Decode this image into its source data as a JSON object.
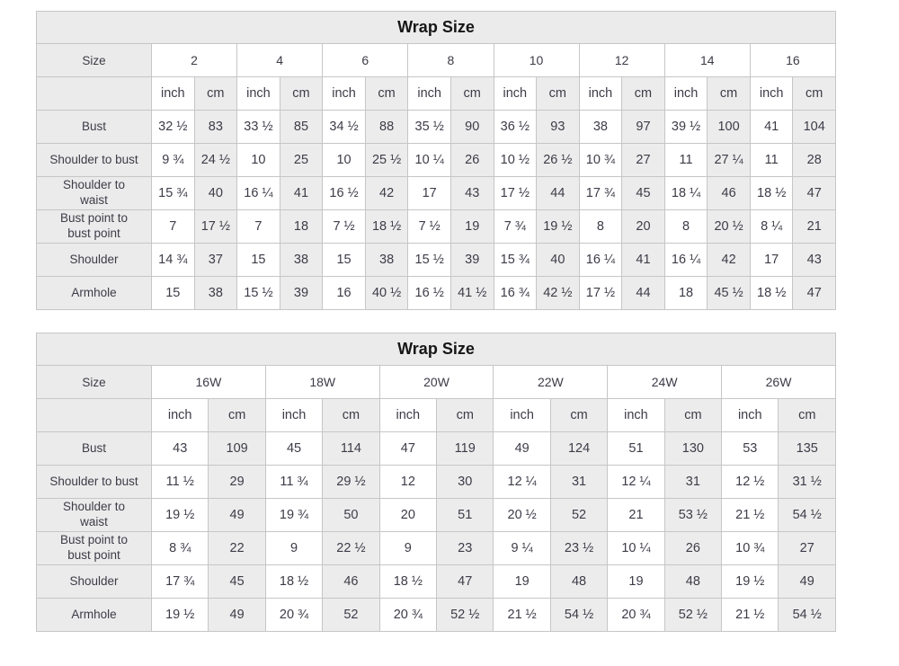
{
  "page": {
    "background": "#ffffff"
  },
  "style": {
    "border_color": "#c6c6c6",
    "band_bg": "#ebebeb",
    "alt_cell_bg": "#ececec",
    "cell_bg": "#ffffff",
    "text_color": "#3e3b47",
    "title_color": "#161616"
  },
  "chart_data": [
    {
      "type": "table",
      "title": "Wrap Size",
      "size_label": "Size",
      "unit_labels": [
        "inch",
        "cm"
      ],
      "sizes": [
        "2",
        "4",
        "6",
        "8",
        "10",
        "12",
        "14",
        "16"
      ],
      "rows": [
        {
          "label": "Bust",
          "cells": [
            "32 ½",
            "83",
            "33 ½",
            "85",
            "34 ½",
            "88",
            "35 ½",
            "90",
            "36 ½",
            "93",
            "38",
            "97",
            "39 ½",
            "100",
            "41",
            "104"
          ]
        },
        {
          "label": "Shoulder to bust",
          "cells": [
            "9 ¾",
            "24 ½",
            "10",
            "25",
            "10",
            "25 ½",
            "10 ¼",
            "26",
            "10 ½",
            "26 ½",
            "10 ¾",
            "27",
            "11",
            "27 ¼",
            "11",
            "28"
          ]
        },
        {
          "label": "Shoulder to\nwaist",
          "cells": [
            "15 ¾",
            "40",
            "16 ¼",
            "41",
            "16 ½",
            "42",
            "17",
            "43",
            "17 ½",
            "44",
            "17 ¾",
            "45",
            "18 ¼",
            "46",
            "18 ½",
            "47"
          ]
        },
        {
          "label": "Bust point to\nbust point",
          "cells": [
            "7",
            "17 ½",
            "7",
            "18",
            "7 ½",
            "18 ½",
            "7 ½",
            "19",
            "7 ¾",
            "19 ½",
            "8",
            "20",
            "8",
            "20 ½",
            "8 ¼",
            "21"
          ]
        },
        {
          "label": "Shoulder",
          "cells": [
            "14 ¾",
            "37",
            "15",
            "38",
            "15",
            "38",
            "15 ½",
            "39",
            "15 ¾",
            "40",
            "16 ¼",
            "41",
            "16 ¼",
            "42",
            "17",
            "43"
          ]
        },
        {
          "label": "Armhole",
          "cells": [
            "15",
            "38",
            "15 ½",
            "39",
            "16",
            "40 ½",
            "16 ½",
            "41 ½",
            "16 ¾",
            "42 ½",
            "17 ½",
            "44",
            "18",
            "45 ½",
            "18 ½",
            "47"
          ]
        }
      ]
    },
    {
      "type": "table",
      "title": "Wrap Size",
      "size_label": "Size",
      "unit_labels": [
        "inch",
        "cm"
      ],
      "sizes": [
        "16W",
        "18W",
        "20W",
        "22W",
        "24W",
        "26W"
      ],
      "rows": [
        {
          "label": "Bust",
          "cells": [
            "43",
            "109",
            "45",
            "114",
            "47",
            "119",
            "49",
            "124",
            "51",
            "130",
            "53",
            "135"
          ]
        },
        {
          "label": "Shoulder to bust",
          "cells": [
            "11 ½",
            "29",
            "11 ¾",
            "29 ½",
            "12",
            "30",
            "12 ¼",
            "31",
            "12 ¼",
            "31",
            "12 ½",
            "31 ½"
          ]
        },
        {
          "label": "Shoulder to\nwaist",
          "cells": [
            "19 ½",
            "49",
            "19 ¾",
            "50",
            "20",
            "51",
            "20 ½",
            "52",
            "21",
            "53 ½",
            "21 ½",
            "54 ½"
          ]
        },
        {
          "label": "Bust point to\nbust point",
          "cells": [
            "8 ¾",
            "22",
            "9",
            "22 ½",
            "9",
            "23",
            "9 ¼",
            "23 ½",
            "10 ¼",
            "26",
            "10 ¾",
            "27"
          ]
        },
        {
          "label": "Shoulder",
          "cells": [
            "17 ¾",
            "45",
            "18 ½",
            "46",
            "18 ½",
            "47",
            "19",
            "48",
            "19",
            "48",
            "19 ½",
            "49"
          ]
        },
        {
          "label": "Armhole",
          "cells": [
            "19 ½",
            "49",
            "20 ¾",
            "52",
            "20 ¾",
            "52 ½",
            "21 ½",
            "54 ½",
            "20 ¾",
            "52 ½",
            "21 ½",
            "54 ½"
          ]
        }
      ]
    }
  ]
}
